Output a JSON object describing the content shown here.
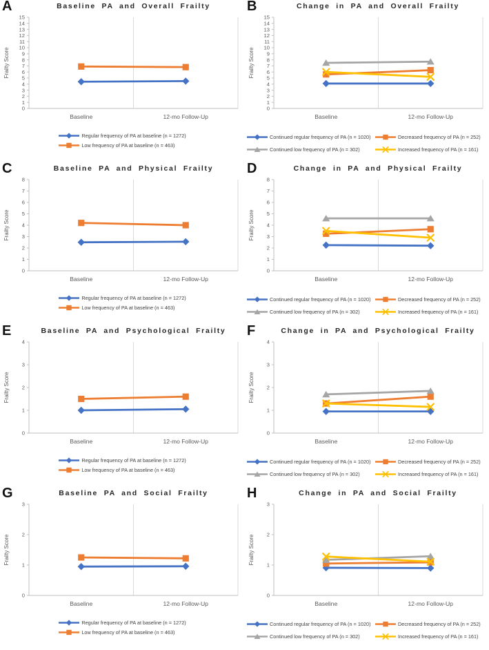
{
  "colors": {
    "blue": "#4472C4",
    "orange": "#ED7D31",
    "gray": "#A5A5A5",
    "yellow": "#FFC000",
    "gridline": "#D9D9D9",
    "axis": "#BFBFBF",
    "tick_text": "#595959",
    "title_text": "#262626"
  },
  "chart_data": [
    {
      "type": "line",
      "panel_label": "A",
      "title": "Baseline PA and Overall Frailty",
      "ylabel": "Frailty Score",
      "categories": [
        "Baseline",
        "12-mo Follow-Up"
      ],
      "ylim": [
        0,
        15
      ],
      "ytick_interval": 1,
      "legend_position": "bottom-center",
      "series": [
        {
          "name": "Regular frequency of PA at baseline (n = 1272)",
          "marker": "diamond",
          "color": "#4472C4",
          "values": [
            4.4,
            4.5
          ]
        },
        {
          "name": "Low frequency of PA at baseline  (n = 463)",
          "marker": "square",
          "color": "#ED7D31",
          "values": [
            6.9,
            6.8
          ]
        }
      ]
    },
    {
      "type": "line",
      "panel_label": "B",
      "title": "Change in PA and Overall Frailty",
      "ylabel": "Frailty Score",
      "categories": [
        "Baseline",
        "12-mo Follow-Up"
      ],
      "ylim": [
        0,
        15
      ],
      "ytick_interval": 1,
      "legend_position": "bottom-two-columns",
      "series": [
        {
          "name": "Continued regular frequency of PA (n = 1020)",
          "marker": "diamond",
          "color": "#4472C4",
          "values": [
            4.1,
            4.1
          ]
        },
        {
          "name": "Decreased frequency of PA (n = 252)",
          "marker": "square",
          "color": "#ED7D31",
          "values": [
            5.6,
            6.3
          ]
        },
        {
          "name": "Continued low frequency of PA (n = 302)",
          "marker": "triangle",
          "color": "#A5A5A5",
          "values": [
            7.5,
            7.7
          ]
        },
        {
          "name": "Increased frequency of PA (n = 161)",
          "marker": "x",
          "color": "#FFC000",
          "values": [
            6.0,
            5.2
          ]
        }
      ]
    },
    {
      "type": "line",
      "panel_label": "C",
      "title": "Baseline PA and Physical Frailty",
      "ylabel": "Frailty Score",
      "categories": [
        "Baseline",
        "12-mo Follow-Up"
      ],
      "ylim": [
        0,
        8
      ],
      "ytick_interval": 1,
      "legend_position": "bottom-center",
      "series": [
        {
          "name": "Regular frequency of PA at baseline (n = 1272)",
          "marker": "diamond",
          "color": "#4472C4",
          "values": [
            2.5,
            2.55
          ]
        },
        {
          "name": "Low frequency of PA at baseline  (n = 463)",
          "marker": "square",
          "color": "#ED7D31",
          "values": [
            4.2,
            4.0
          ]
        }
      ]
    },
    {
      "type": "line",
      "panel_label": "D",
      "title": "Change in PA and Physical Frailty",
      "ylabel": "Frailty Score",
      "categories": [
        "Baseline",
        "12-mo Follow-Up"
      ],
      "ylim": [
        0,
        8
      ],
      "ytick_interval": 1,
      "legend_position": "bottom-two-columns",
      "series": [
        {
          "name": "Continued regular frequency of PA (n = 1020)",
          "marker": "diamond",
          "color": "#4472C4",
          "values": [
            2.25,
            2.2
          ]
        },
        {
          "name": "Decreased frequency of PA (n = 252)",
          "marker": "square",
          "color": "#ED7D31",
          "values": [
            3.25,
            3.65
          ]
        },
        {
          "name": "Continued low frequency of PA (n = 302)",
          "marker": "triangle",
          "color": "#A5A5A5",
          "values": [
            4.6,
            4.6
          ]
        },
        {
          "name": "Increased frequency of PA (n = 161)",
          "marker": "x",
          "color": "#FFC000",
          "values": [
            3.5,
            2.9
          ]
        }
      ]
    },
    {
      "type": "line",
      "panel_label": "E",
      "title": "Baseline PA and Psychological Frailty",
      "ylabel": "Frailty Score",
      "categories": [
        "Baseline",
        "12-mo Follow-Up"
      ],
      "ylim": [
        0,
        4
      ],
      "ytick_interval": 1,
      "legend_position": "bottom-center",
      "series": [
        {
          "name": "Regular frequency of PA at baseline (n = 1272)",
          "marker": "diamond",
          "color": "#4472C4",
          "values": [
            1.0,
            1.05
          ]
        },
        {
          "name": "Low frequency of PA at baseline  (n = 463)",
          "marker": "square",
          "color": "#ED7D31",
          "values": [
            1.5,
            1.6
          ]
        }
      ]
    },
    {
      "type": "line",
      "panel_label": "F",
      "title": "Change in PA and Psychological Frailty",
      "ylabel": "Frailty Score",
      "categories": [
        "Baseline",
        "12-mo Follow-Up"
      ],
      "ylim": [
        0,
        4
      ],
      "ytick_interval": 1,
      "legend_position": "bottom-two-columns",
      "series": [
        {
          "name": "Continued regular frequency of PA (n = 1020)",
          "marker": "diamond",
          "color": "#4472C4",
          "values": [
            0.95,
            0.95
          ]
        },
        {
          "name": "Decreased frequency of PA (n = 252)",
          "marker": "square",
          "color": "#ED7D31",
          "values": [
            1.3,
            1.6
          ]
        },
        {
          "name": "Continued low frequency of PA (n = 302)",
          "marker": "triangle",
          "color": "#A5A5A5",
          "values": [
            1.7,
            1.85
          ]
        },
        {
          "name": "Increased frequency of PA (n = 161)",
          "marker": "x",
          "color": "#FFC000",
          "values": [
            1.3,
            1.15
          ]
        }
      ]
    },
    {
      "type": "line",
      "panel_label": "G",
      "title": "Baseline PA and Social Frailty",
      "ylabel": "Frailty Score",
      "categories": [
        "Baseline",
        "12-mo Follow-Up"
      ],
      "ylim": [
        0,
        3
      ],
      "ytick_interval": 1,
      "legend_position": "bottom-center",
      "series": [
        {
          "name": "Regular frequency of PA at baseline (n = 1272)",
          "marker": "diamond",
          "color": "#4472C4",
          "values": [
            0.95,
            0.96
          ]
        },
        {
          "name": "Low frequency of PA at baseline  (n = 463)",
          "marker": "square",
          "color": "#ED7D31",
          "values": [
            1.25,
            1.22
          ]
        }
      ]
    },
    {
      "type": "line",
      "panel_label": "H",
      "title": "Change in PA and Social Frailty",
      "ylabel": "Frailty Score",
      "categories": [
        "Baseline",
        "12-mo Follow-Up"
      ],
      "ylim": [
        0,
        3
      ],
      "ytick_interval": 1,
      "legend_position": "bottom-two-columns",
      "series": [
        {
          "name": "Continued regular frequency of PA (n = 1020)",
          "marker": "diamond",
          "color": "#4472C4",
          "values": [
            0.91,
            0.9
          ]
        },
        {
          "name": "Decreased frequency of PA (n = 252)",
          "marker": "square",
          "color": "#ED7D31",
          "values": [
            1.05,
            1.09
          ]
        },
        {
          "name": "Continued low frequency of PA (n = 302)",
          "marker": "triangle",
          "color": "#A5A5A5",
          "values": [
            1.17,
            1.29
          ]
        },
        {
          "name": "Increased frequency of PA (n = 161)",
          "marker": "x",
          "color": "#FFC000",
          "values": [
            1.28,
            1.11
          ]
        }
      ]
    }
  ]
}
